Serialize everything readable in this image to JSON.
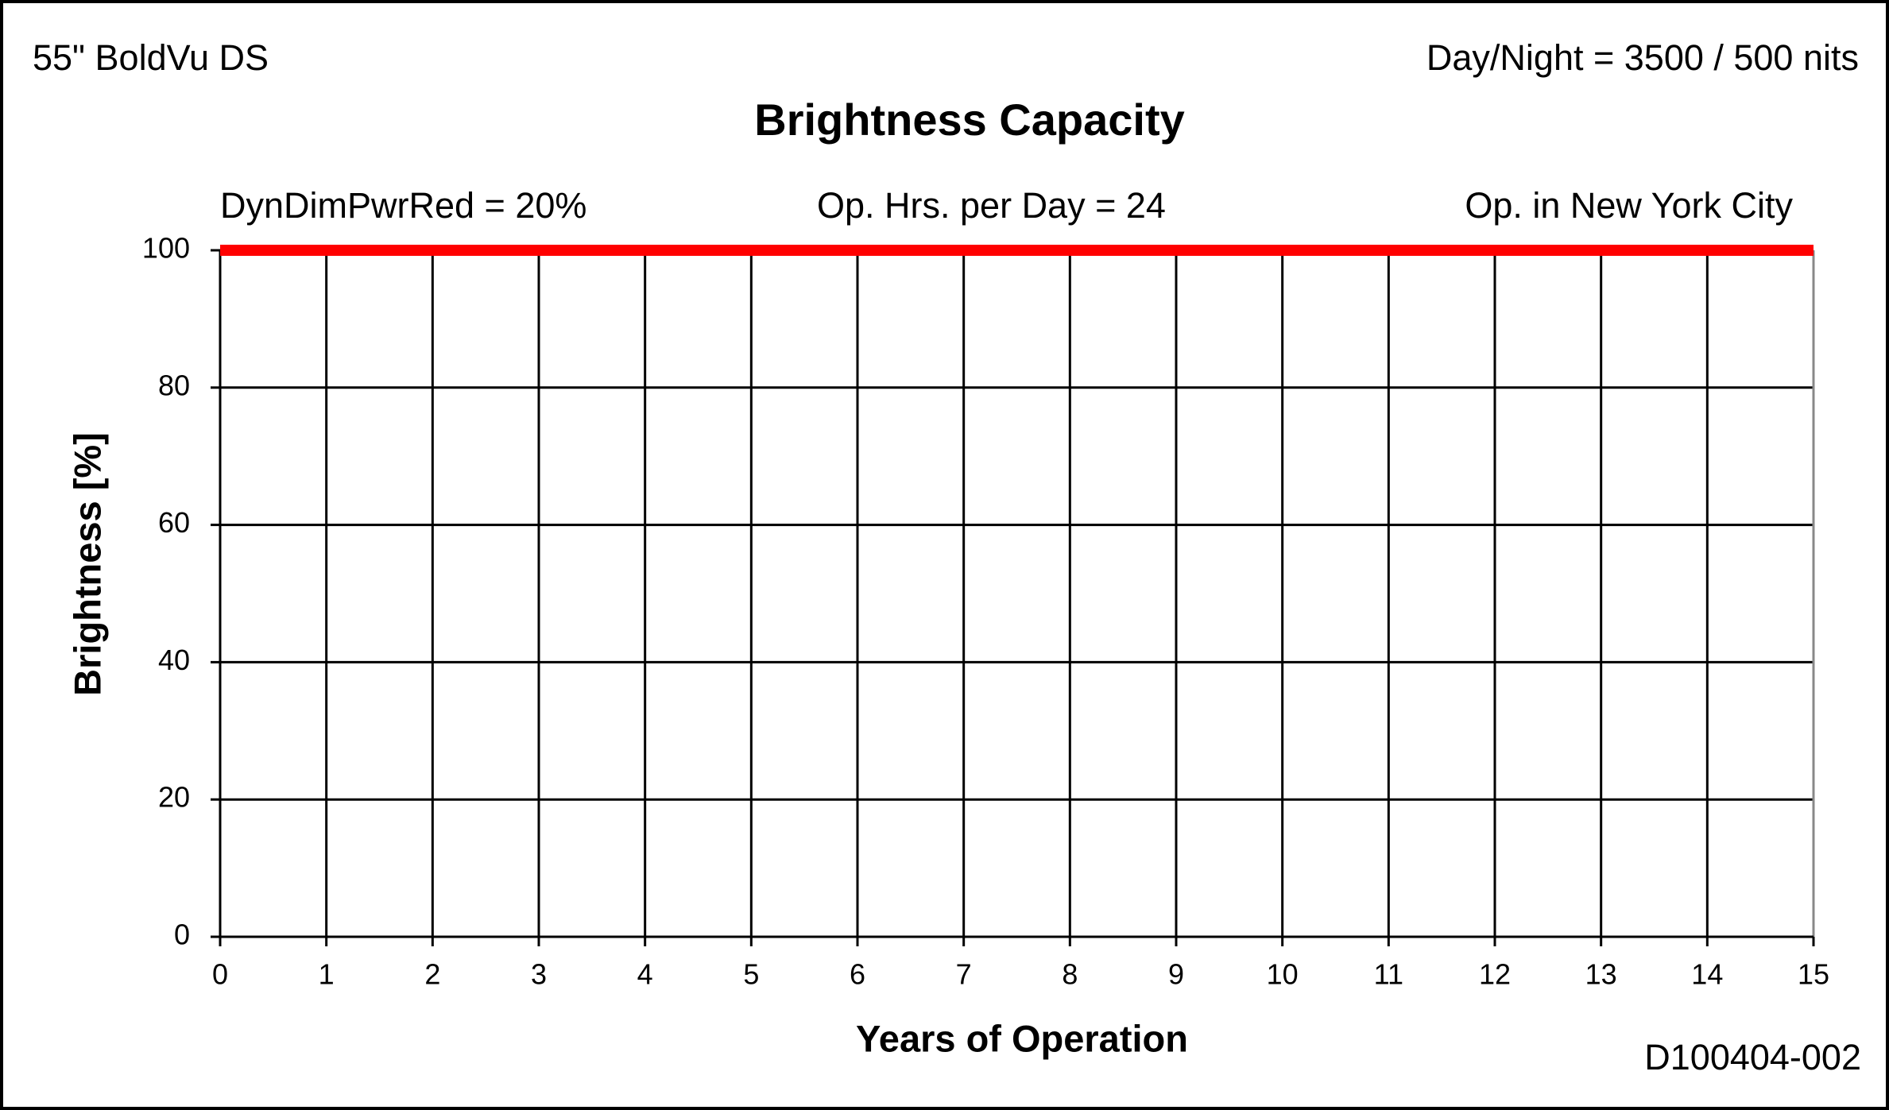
{
  "chart_data": {
    "type": "line",
    "title": "Brightness Capacity",
    "subtitle_left": "55\" BoldVu DS",
    "subtitle_right": "Day/Night = 3500 / 500 nits",
    "annotations": [
      "DynDimPwrRed  = 20%",
      "Op. Hrs. per Day = 24",
      "Op. in New York City"
    ],
    "footnote": "D100404-002",
    "x_label": "Years of Operation",
    "y_label": "Brightness  [%]",
    "x": [
      0,
      15
    ],
    "series": [
      {
        "color": "#ff0000",
        "values": [
          100,
          100
        ]
      }
    ],
    "xlim": [
      0,
      15
    ],
    "xticks": [
      0,
      1,
      2,
      3,
      4,
      5,
      6,
      7,
      8,
      9,
      10,
      11,
      12,
      13,
      14,
      15
    ],
    "ylim": [
      0,
      100
    ],
    "yticks": [
      0,
      20,
      40,
      60,
      80,
      100
    ],
    "grid": true
  }
}
